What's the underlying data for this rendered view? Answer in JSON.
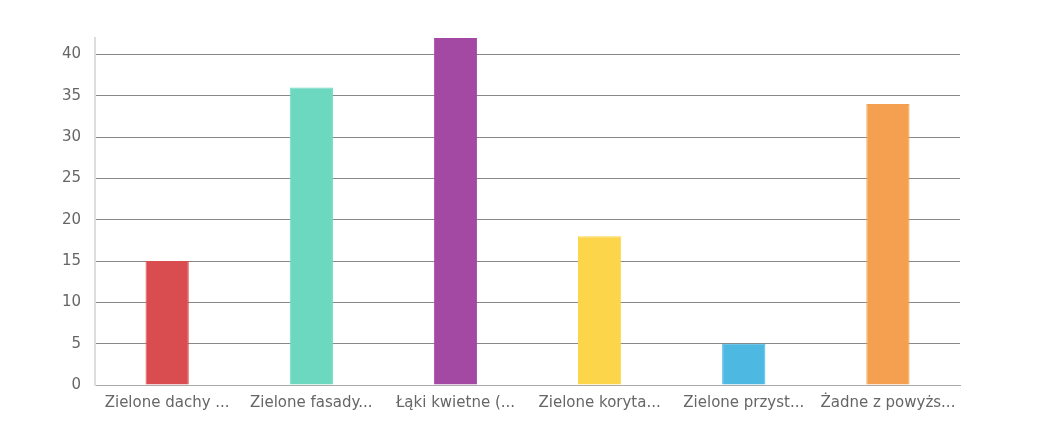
{
  "chart_data": {
    "type": "bar",
    "categories": [
      "Zielone dachy ...",
      "Zielone fasady...",
      "Łąki kwietne (...",
      "Zielone koryta...",
      "Zielone przyst...",
      "Żadne z powyżs..."
    ],
    "values": [
      15,
      36,
      42,
      18,
      5,
      34
    ],
    "colors": [
      "#d94c4f",
      "#6dd8c0",
      "#a349a4",
      "#fdd54b",
      "#4db9e3",
      "#f5a050"
    ],
    "ylim": [
      0,
      42
    ],
    "yticks": [
      0,
      5,
      10,
      15,
      20,
      25,
      30,
      35,
      40
    ],
    "grid": "y",
    "legend": false
  }
}
